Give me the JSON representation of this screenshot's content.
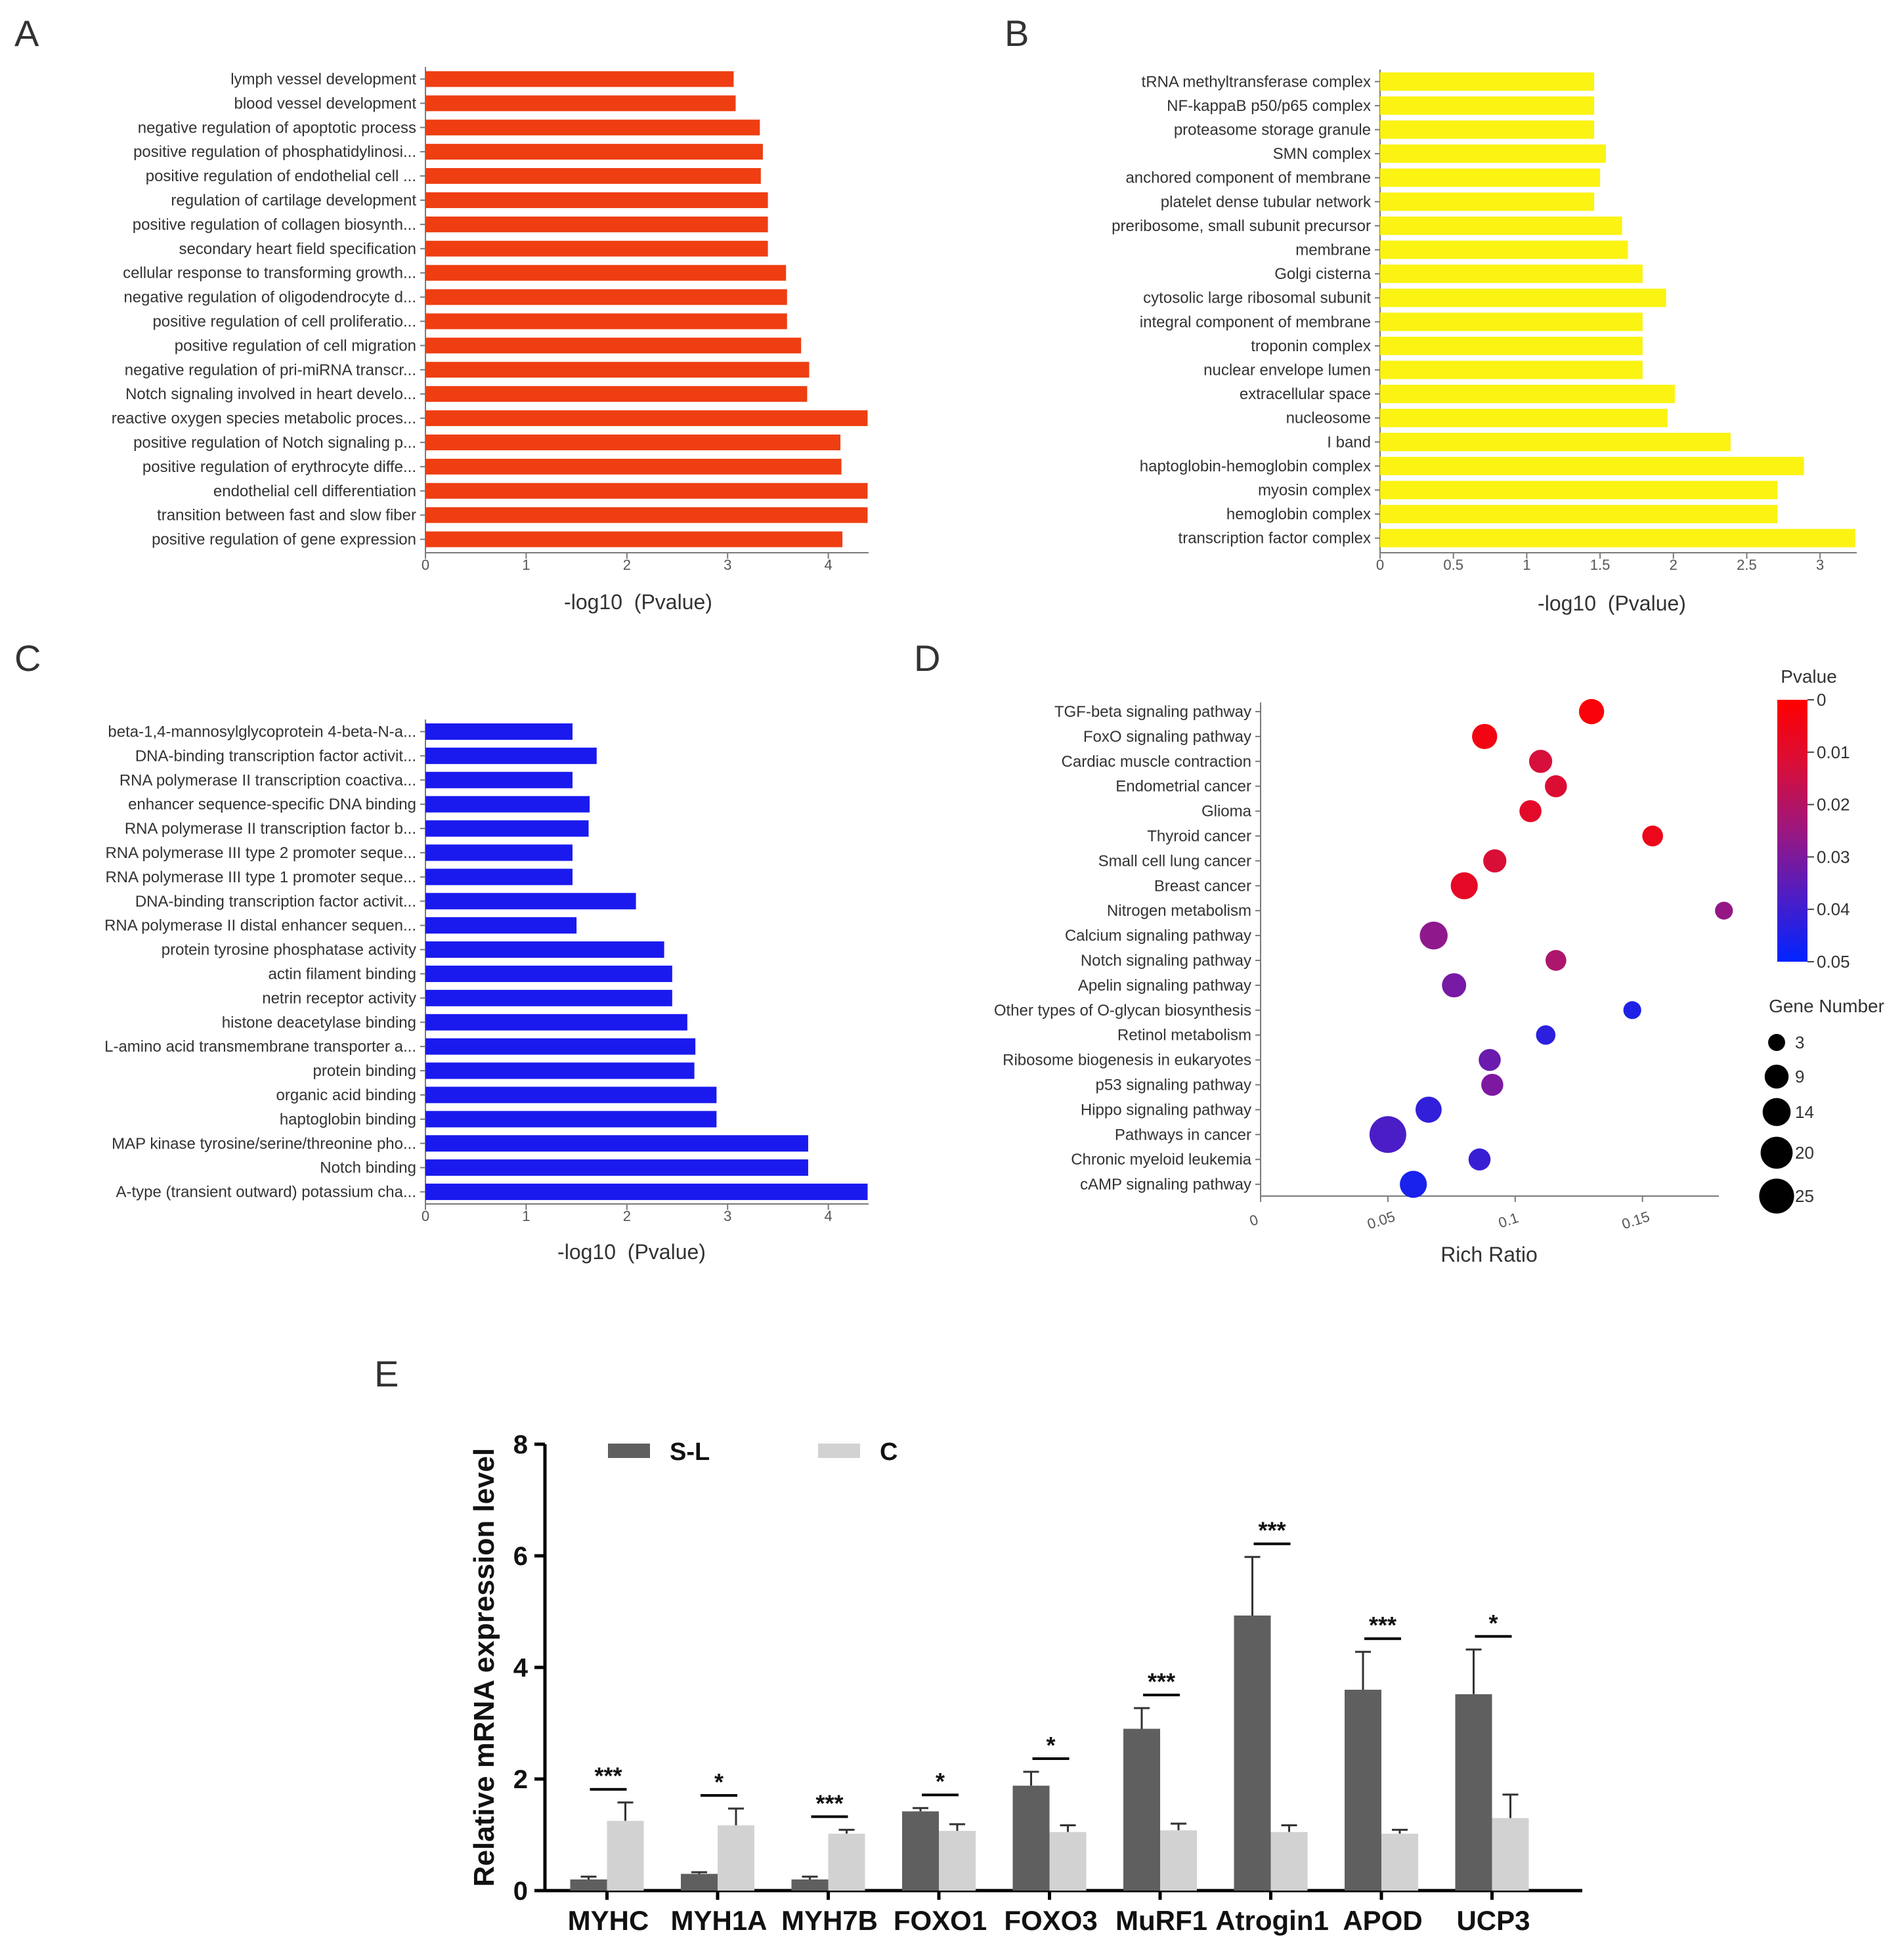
{
  "figure_labels": [
    "A",
    "B",
    "C",
    "D",
    "E"
  ],
  "colors": {
    "A": "#ee3e12",
    "B": "#fbf312",
    "C": "#1a1aee",
    "E_SL": "#5f5f5f",
    "E_C": "#d2d2d2",
    "axis": "#7a7a7a",
    "text": "#333333"
  },
  "chart_data": [
    {
      "panel": "A",
      "type": "bar",
      "orientation": "horizontal",
      "xlabel": "-log10  (Pvalue)",
      "xlim": [
        0,
        4.4
      ],
      "xticks": [
        "0",
        "1",
        "2",
        "3",
        "4"
      ],
      "categories": [
        "lymph vessel development",
        "blood vessel development",
        "negative regulation of apoptotic process",
        "positive regulation of phosphatidylinosi...",
        "positive regulation of endothelial cell ...",
        "regulation of cartilage development",
        "positive regulation of collagen biosynth...",
        "secondary heart field specification",
        "cellular response to transforming growth...",
        "negative regulation of oligodendrocyte d...",
        "positive regulation of cell proliferatio...",
        "positive regulation of cell migration",
        "negative regulation of pri-miRNA transcr...",
        "Notch signaling involved in heart develo...",
        "reactive oxygen species metabolic proces...",
        "positive regulation of Notch signaling p...",
        "positive regulation of erythrocyte diffe...",
        "endothelial cell differentiation",
        "transition between fast and slow fiber",
        "positive regulation of gene expression"
      ],
      "values": [
        3.06,
        3.08,
        3.32,
        3.35,
        3.33,
        3.4,
        3.4,
        3.4,
        3.58,
        3.59,
        3.59,
        3.73,
        3.81,
        3.79,
        4.39,
        4.12,
        4.13,
        4.39,
        4.39,
        4.14
      ]
    },
    {
      "panel": "B",
      "type": "bar",
      "orientation": "horizontal",
      "xlabel": "-log10  (Pvalue)",
      "xlim": [
        0,
        3.25
      ],
      "xticks": [
        "0",
        "0.5",
        "1",
        "1.5",
        "2",
        "2.5",
        "3"
      ],
      "categories": [
        "tRNA methyltransferase complex",
        "NF-kappaB p50/p65 complex",
        "proteasome storage granule",
        "SMN complex",
        "anchored component of membrane",
        "platelet dense tubular network",
        "preribosome, small subunit precursor",
        "membrane",
        "Golgi cisterna",
        "cytosolic large ribosomal subunit",
        "integral component of membrane",
        "troponin complex",
        "nuclear envelope lumen",
        "extracellular space",
        "nucleosome",
        "I band",
        "haptoglobin-hemoglobin complex",
        "myosin complex",
        "hemoglobin complex",
        "transcription factor complex"
      ],
      "values": [
        1.46,
        1.46,
        1.46,
        1.54,
        1.5,
        1.46,
        1.65,
        1.69,
        1.79,
        1.95,
        1.79,
        1.79,
        1.79,
        2.01,
        1.96,
        2.39,
        2.89,
        2.71,
        2.71,
        3.24
      ]
    },
    {
      "panel": "C",
      "type": "bar",
      "orientation": "horizontal",
      "xlabel": "-log10  (Pvalue)",
      "xlim": [
        0,
        4.4
      ],
      "xticks": [
        "0",
        "1",
        "2",
        "3",
        "4"
      ],
      "categories": [
        "beta-1,4-mannosylglycoprotein 4-beta-N-a...",
        "DNA-binding transcription factor activit...",
        "RNA polymerase II transcription coactiva...",
        "enhancer sequence-specific DNA binding",
        "RNA polymerase II transcription factor b...",
        "RNA polymerase III type 2 promoter seque...",
        "RNA polymerase III type 1 promoter seque...",
        "DNA-binding transcription factor activit...",
        "RNA polymerase II distal enhancer sequen...",
        "protein tyrosine phosphatase activity",
        "actin filament binding",
        "netrin receptor activity",
        "histone deacetylase binding",
        "L-amino acid transmembrane transporter a...",
        "protein binding",
        "organic acid binding",
        "haptoglobin binding",
        "MAP kinase tyrosine/serine/threonine pho...",
        "Notch binding",
        "A-type (transient outward) potassium cha..."
      ],
      "values": [
        1.46,
        1.7,
        1.46,
        1.63,
        1.62,
        1.46,
        1.46,
        2.09,
        1.5,
        2.37,
        2.45,
        2.45,
        2.6,
        2.68,
        2.67,
        2.89,
        2.89,
        3.8,
        3.8,
        4.39
      ]
    },
    {
      "panel": "D",
      "type": "scatter",
      "xlabel": "Rich Ratio",
      "xlim": [
        0,
        0.18
      ],
      "xticks": [
        0,
        0.05,
        0.1,
        0.15
      ],
      "xtick_labels": [
        "0",
        "0.05",
        "0.1",
        "0.15"
      ],
      "colorbar_title": "Pvalue",
      "colorbar_ticks": [
        "0",
        "0.01",
        "0.02",
        "0.03",
        "0.04",
        "0.05"
      ],
      "size_legend_title": "Gene Number",
      "size_legend": [
        3,
        9,
        14,
        20,
        25
      ],
      "points": [
        {
          "pathway": "TGF-beta signaling pathway",
          "rich_ratio": 0.13,
          "pvalue": 0.002,
          "genes": 9
        },
        {
          "pathway": "FoxO signaling pathway",
          "rich_ratio": 0.088,
          "pvalue": 0.004,
          "genes": 9
        },
        {
          "pathway": "Cardiac muscle contraction",
          "rich_ratio": 0.11,
          "pvalue": 0.013,
          "genes": 7
        },
        {
          "pathway": "Endometrial cancer",
          "rich_ratio": 0.116,
          "pvalue": 0.011,
          "genes": 6
        },
        {
          "pathway": "Glioma",
          "rich_ratio": 0.106,
          "pvalue": 0.009,
          "genes": 6
        },
        {
          "pathway": "Thyroid cancer",
          "rich_ratio": 0.154,
          "pvalue": 0.006,
          "genes": 5
        },
        {
          "pathway": "Small cell lung cancer",
          "rich_ratio": 0.092,
          "pvalue": 0.012,
          "genes": 7
        },
        {
          "pathway": "Breast cancer",
          "rich_ratio": 0.08,
          "pvalue": 0.008,
          "genes": 11
        },
        {
          "pathway": "Nitrogen metabolism",
          "rich_ratio": 0.182,
          "pvalue": 0.026,
          "genes": 3
        },
        {
          "pathway": "Calcium signaling pathway",
          "rich_ratio": 0.068,
          "pvalue": 0.027,
          "genes": 12
        },
        {
          "pathway": "Notch signaling pathway",
          "rich_ratio": 0.116,
          "pvalue": 0.022,
          "genes": 5
        },
        {
          "pathway": "Apelin signaling pathway",
          "rich_ratio": 0.076,
          "pvalue": 0.031,
          "genes": 8
        },
        {
          "pathway": "Other types of O-glycan biosynthesis",
          "rich_ratio": 0.146,
          "pvalue": 0.045,
          "genes": 3
        },
        {
          "pathway": "Retinol metabolism",
          "rich_ratio": 0.112,
          "pvalue": 0.043,
          "genes": 4
        },
        {
          "pathway": "Ribosome biogenesis in eukaryotes",
          "rich_ratio": 0.09,
          "pvalue": 0.033,
          "genes": 6
        },
        {
          "pathway": "p53 signaling pathway",
          "rich_ratio": 0.091,
          "pvalue": 0.03,
          "genes": 6
        },
        {
          "pathway": "Hippo signaling pathway",
          "rich_ratio": 0.066,
          "pvalue": 0.042,
          "genes": 10
        },
        {
          "pathway": "Pathways in cancer",
          "rich_ratio": 0.05,
          "pvalue": 0.038,
          "genes": 25
        },
        {
          "pathway": "Chronic myeloid leukemia",
          "rich_ratio": 0.086,
          "pvalue": 0.041,
          "genes": 6
        },
        {
          "pathway": "cAMP signaling pathway",
          "rich_ratio": 0.06,
          "pvalue": 0.046,
          "genes": 11
        }
      ]
    },
    {
      "panel": "E",
      "type": "bar",
      "orientation": "vertical",
      "ylabel": "Relative mRNA expression level",
      "ylim": [
        0,
        8
      ],
      "yticks": [
        "0",
        "2",
        "4",
        "6",
        "8"
      ],
      "categories": [
        "MYHC",
        "MYH1A",
        "MYH7B",
        "FOXO1",
        "FOXO3",
        "MuRF1",
        "Atrogin1",
        "APOD",
        "UCP3"
      ],
      "series": [
        {
          "name": "S-L",
          "values": [
            0.2,
            0.3,
            0.2,
            1.42,
            1.88,
            2.9,
            4.93,
            3.6,
            3.52
          ],
          "errors": [
            0.05,
            0.03,
            0.05,
            0.06,
            0.25,
            0.37,
            1.05,
            0.68,
            0.8
          ]
        },
        {
          "name": "C",
          "values": [
            1.25,
            1.17,
            1.02,
            1.07,
            1.05,
            1.08,
            1.05,
            1.02,
            1.3
          ],
          "errors": [
            0.33,
            0.3,
            0.07,
            0.12,
            0.12,
            0.12,
            0.12,
            0.07,
            0.42
          ]
        }
      ],
      "significance": [
        "***",
        "*",
        "***",
        "*",
        "*",
        "***",
        "***",
        "***",
        "*"
      ]
    }
  ]
}
